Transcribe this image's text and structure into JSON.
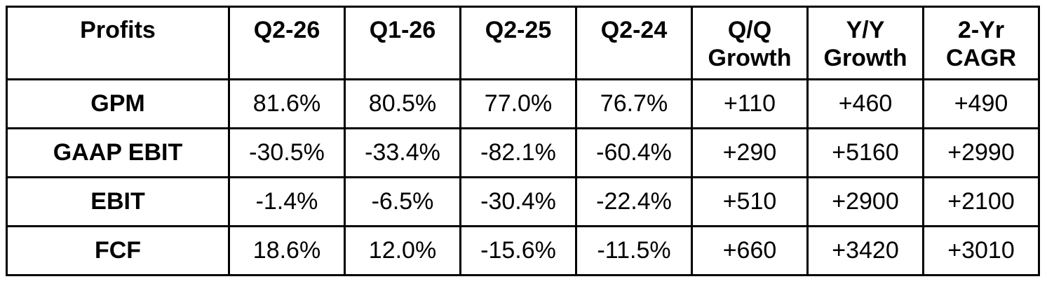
{
  "chart_data": {
    "type": "table",
    "title": "Profits",
    "columns": [
      "Profits",
      "Q2-26",
      "Q1-26",
      "Q2-25",
      "Q2-24",
      "Q/Q Growth",
      "Y/Y Growth",
      "2-Yr CAGR"
    ],
    "rows": [
      {
        "label": "GPM",
        "values": [
          "81.6%",
          "80.5%",
          "77.0%",
          "76.7%",
          "+110",
          "+460",
          "+490"
        ]
      },
      {
        "label": "GAAP EBIT",
        "values": [
          "-30.5%",
          "-33.4%",
          "-82.1%",
          "-60.4%",
          "+290",
          "+5160",
          "+2990"
        ]
      },
      {
        "label": "EBIT",
        "values": [
          "-1.4%",
          "-6.5%",
          "-30.4%",
          "-22.4%",
          "+510",
          "+2900",
          "+2100"
        ]
      },
      {
        "label": "FCF",
        "values": [
          "18.6%",
          "12.0%",
          "-15.6%",
          "-11.5%",
          "+660",
          "+3420",
          "+3010"
        ]
      }
    ],
    "layout": {
      "grid": "full-borders",
      "header_bold": true,
      "row_labels_bold": true
    },
    "colors": {
      "border": "#000000",
      "text": "#000000",
      "background": "#ffffff"
    }
  }
}
